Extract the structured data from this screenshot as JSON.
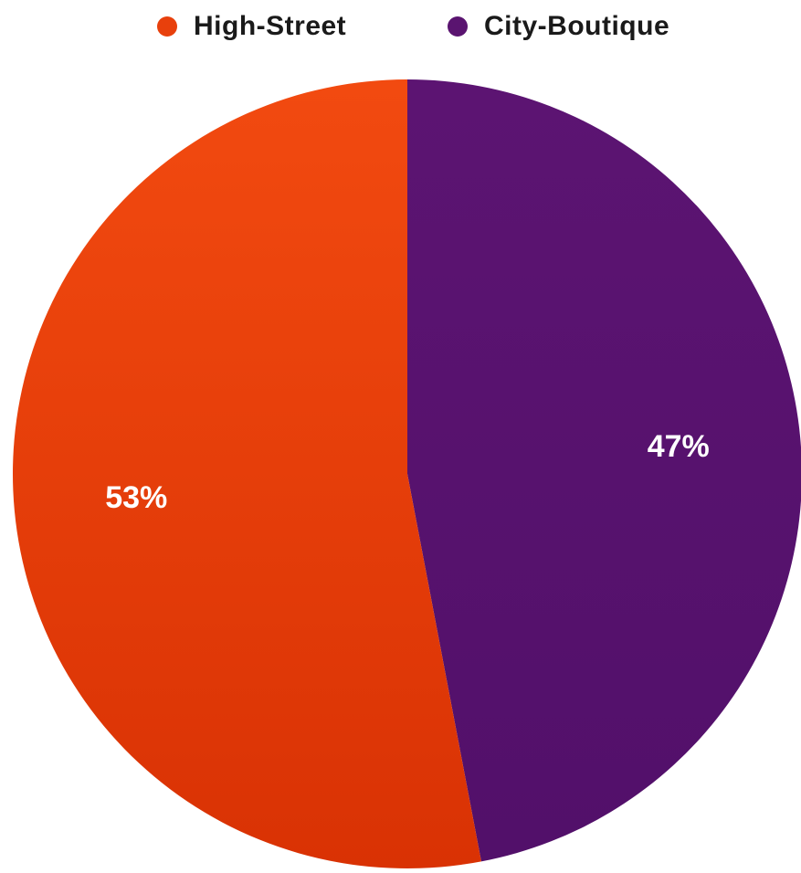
{
  "chart_data": {
    "type": "pie",
    "categories": [
      "High-Street",
      "City-Boutique"
    ],
    "values": [
      53,
      47
    ],
    "labels": [
      "53%",
      "47%"
    ],
    "colors": [
      "#e8400c",
      "#5a1470"
    ],
    "legend": "top",
    "start_angle_deg": 0,
    "direction": "clockwise"
  }
}
